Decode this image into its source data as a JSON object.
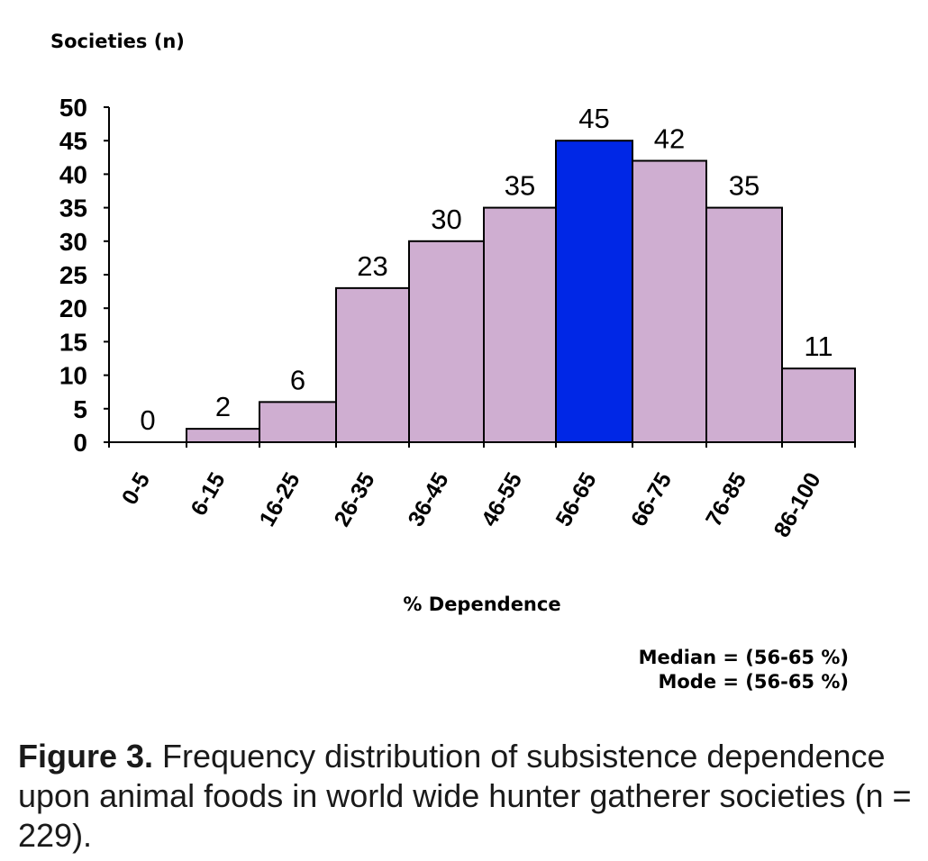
{
  "chart_data": {
    "type": "bar",
    "ylabel": "Societies (n)",
    "xlabel": "% Dependence",
    "categories": [
      "0-5",
      "6-15",
      "16-25",
      "26-35",
      "36-45",
      "46-55",
      "56-65",
      "66-75",
      "76-85",
      "86-100"
    ],
    "values": [
      0,
      2,
      6,
      23,
      30,
      35,
      45,
      42,
      35,
      11
    ],
    "ylim": [
      0,
      50
    ],
    "yticks": [
      0,
      5,
      10,
      15,
      20,
      25,
      30,
      35,
      40,
      45,
      50
    ],
    "highlight_index": 6,
    "colors": {
      "bar": "#cfaed1",
      "highlight": "#0027e6",
      "outline": "#000000"
    },
    "grid": false,
    "annotations": [
      "Median = (56-65 %)",
      "Mode = (56-65 %)"
    ]
  },
  "caption": {
    "label": "Figure 3.",
    "text": " Frequency distribution of subsistence dependence upon animal foods in world wide hunter gatherer societies (n = 229)."
  }
}
